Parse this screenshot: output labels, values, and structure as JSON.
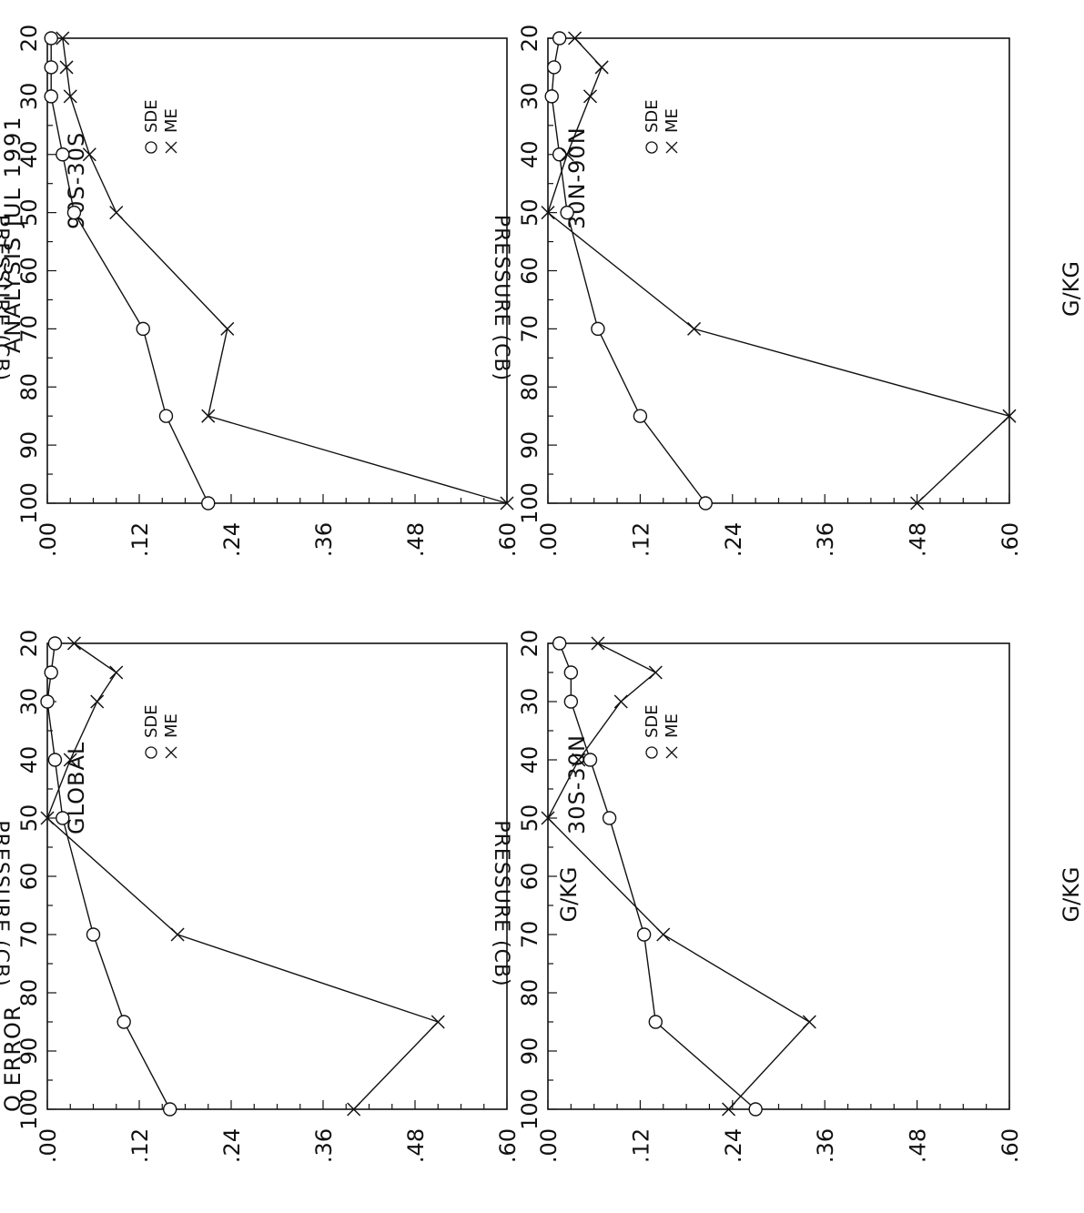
{
  "figure": {
    "title": "ANALYSIS   JUL 1991",
    "corner_label": "Q ERROR"
  },
  "chart_data": [
    {
      "type": "line",
      "title": "GLOBAL",
      "xlabel": "PRESSURE   (CB)",
      "ylabel": "G/KG",
      "x_ticks": [
        "20",
        "30",
        "40",
        "50",
        "60",
        "70",
        "80",
        "90",
        "100"
      ],
      "y_ticks": [
        ".00",
        ".12",
        ".24",
        ".36",
        ".48",
        ".60"
      ],
      "xlim": [
        20,
        100
      ],
      "ylim": [
        0,
        0.6
      ],
      "series": [
        {
          "name": "SDE",
          "marker": "circle",
          "x": [
            20,
            25,
            30,
            40,
            50,
            70,
            85,
            100
          ],
          "y": [
            0.01,
            0.005,
            0.0,
            0.01,
            0.02,
            0.06,
            0.1,
            0.16
          ]
        },
        {
          "name": "ME",
          "marker": "x",
          "x": [
            20,
            25,
            30,
            40,
            50,
            70,
            85,
            100
          ],
          "y": [
            0.035,
            0.09,
            0.065,
            0.03,
            0.0,
            0.17,
            0.51,
            0.4
          ]
        }
      ]
    },
    {
      "type": "line",
      "title": "90S-30S",
      "xlabel": "PRESSURE   (CB)",
      "ylabel": "",
      "x_ticks": [
        "20",
        "30",
        "40",
        "50",
        "60",
        "70",
        "80",
        "90",
        "100"
      ],
      "y_ticks": [
        ".00",
        ".12",
        ".24",
        ".36",
        ".48",
        ".60"
      ],
      "xlim": [
        20,
        100
      ],
      "ylim": [
        0,
        0.6
      ],
      "series": [
        {
          "name": "SDE",
          "marker": "circle",
          "x": [
            20,
            25,
            30,
            40,
            50,
            70,
            85,
            100
          ],
          "y": [
            0.005,
            0.005,
            0.005,
            0.02,
            0.035,
            0.125,
            0.155,
            0.21
          ]
        },
        {
          "name": "ME",
          "marker": "x",
          "x": [
            20,
            25,
            30,
            40,
            50,
            70,
            85,
            100
          ],
          "y": [
            0.02,
            0.025,
            0.03,
            0.055,
            0.09,
            0.235,
            0.21,
            0.6
          ]
        }
      ]
    },
    {
      "type": "line",
      "title": "30S-30N",
      "xlabel": "PRESSURE   (CB)",
      "ylabel": "G/KG",
      "x_ticks": [
        "20",
        "30",
        "40",
        "50",
        "60",
        "70",
        "80",
        "90",
        "100"
      ],
      "y_ticks": [
        ".00",
        ".12",
        ".24",
        ".36",
        ".48",
        ".60"
      ],
      "xlim": [
        20,
        100
      ],
      "ylim": [
        0,
        0.6
      ],
      "series": [
        {
          "name": "SDE",
          "marker": "circle",
          "x": [
            20,
            25,
            30,
            40,
            50,
            70,
            85,
            100
          ],
          "y": [
            0.015,
            0.03,
            0.03,
            0.055,
            0.08,
            0.125,
            0.14,
            0.27
          ]
        },
        {
          "name": "ME",
          "marker": "x",
          "x": [
            20,
            25,
            30,
            40,
            50,
            70,
            85,
            100
          ],
          "y": [
            0.065,
            0.14,
            0.095,
            0.04,
            0.0,
            0.15,
            0.34,
            0.235
          ]
        }
      ]
    },
    {
      "type": "line",
      "title": "30N-90N",
      "xlabel": "PRESSURE   (CB)",
      "ylabel": "G/KG",
      "x_ticks": [
        "20",
        "30",
        "40",
        "50",
        "60",
        "70",
        "80",
        "90",
        "100"
      ],
      "y_ticks": [
        ".00",
        ".12",
        ".24",
        ".36",
        ".48",
        ".60"
      ],
      "xlim": [
        20,
        100
      ],
      "ylim": [
        0,
        0.6
      ],
      "series": [
        {
          "name": "SDE",
          "marker": "circle",
          "x": [
            20,
            25,
            30,
            40,
            50,
            70,
            85,
            100
          ],
          "y": [
            0.015,
            0.008,
            0.005,
            0.015,
            0.025,
            0.065,
            0.12,
            0.205
          ]
        },
        {
          "name": "ME",
          "marker": "x",
          "x": [
            20,
            25,
            30,
            40,
            50,
            70,
            85,
            100
          ],
          "y": [
            0.035,
            0.07,
            0.055,
            0.025,
            0.0,
            0.19,
            0.6,
            0.48
          ]
        }
      ]
    }
  ]
}
